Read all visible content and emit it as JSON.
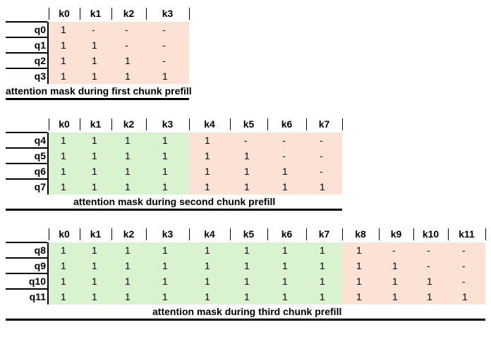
{
  "tables": [
    {
      "caption": "attention mask during first chunk prefill",
      "headers": [
        "k0",
        "k1",
        "k2",
        "k3"
      ],
      "rows": [
        {
          "label": "q0",
          "values": [
            "1",
            "-",
            "-",
            "-"
          ]
        },
        {
          "label": "q1",
          "values": [
            "1",
            "1",
            "-",
            "-"
          ]
        },
        {
          "label": "q2",
          "values": [
            "1",
            "1",
            "1",
            "-"
          ]
        },
        {
          "label": "q3",
          "values": [
            "1",
            "1",
            "1",
            "1"
          ]
        }
      ],
      "prev_cols": 0
    },
    {
      "caption": "attention mask during second chunk prefill",
      "headers": [
        "k0",
        "k1",
        "k2",
        "k3",
        "k4",
        "k5",
        "k6",
        "k7"
      ],
      "rows": [
        {
          "label": "q4",
          "values": [
            "1",
            "1",
            "1",
            "1",
            "1",
            "-",
            "-",
            "-"
          ]
        },
        {
          "label": "q5",
          "values": [
            "1",
            "1",
            "1",
            "1",
            "1",
            "1",
            "-",
            "-"
          ]
        },
        {
          "label": "q6",
          "values": [
            "1",
            "1",
            "1",
            "1",
            "1",
            "1",
            "1",
            "-"
          ]
        },
        {
          "label": "q7",
          "values": [
            "1",
            "1",
            "1",
            "1",
            "1",
            "1",
            "1",
            "1"
          ]
        }
      ],
      "prev_cols": 4
    },
    {
      "caption": "attention mask during third chunk prefill",
      "headers": [
        "k0",
        "k1",
        "k2",
        "k3",
        "k4",
        "k5",
        "k6",
        "k7",
        "k8",
        "k9",
        "k10",
        "k11"
      ],
      "rows": [
        {
          "label": "q8",
          "values": [
            "1",
            "1",
            "1",
            "1",
            "1",
            "1",
            "1",
            "1",
            "1",
            "-",
            "-",
            "-"
          ]
        },
        {
          "label": "q9",
          "values": [
            "1",
            "1",
            "1",
            "1",
            "1",
            "1",
            "1",
            "1",
            "1",
            "1",
            "-",
            "-"
          ]
        },
        {
          "label": "q10",
          "values": [
            "1",
            "1",
            "1",
            "1",
            "1",
            "1",
            "1",
            "1",
            "1",
            "1",
            "1",
            "-"
          ]
        },
        {
          "label": "q11",
          "values": [
            "1",
            "1",
            "1",
            "1",
            "1",
            "1",
            "1",
            "1",
            "1",
            "1",
            "1",
            "1"
          ]
        }
      ],
      "prev_cols": 8
    }
  ],
  "colors": {
    "attended_previous": "#d9f2d0",
    "current_chunk": "#fbe2d5"
  }
}
